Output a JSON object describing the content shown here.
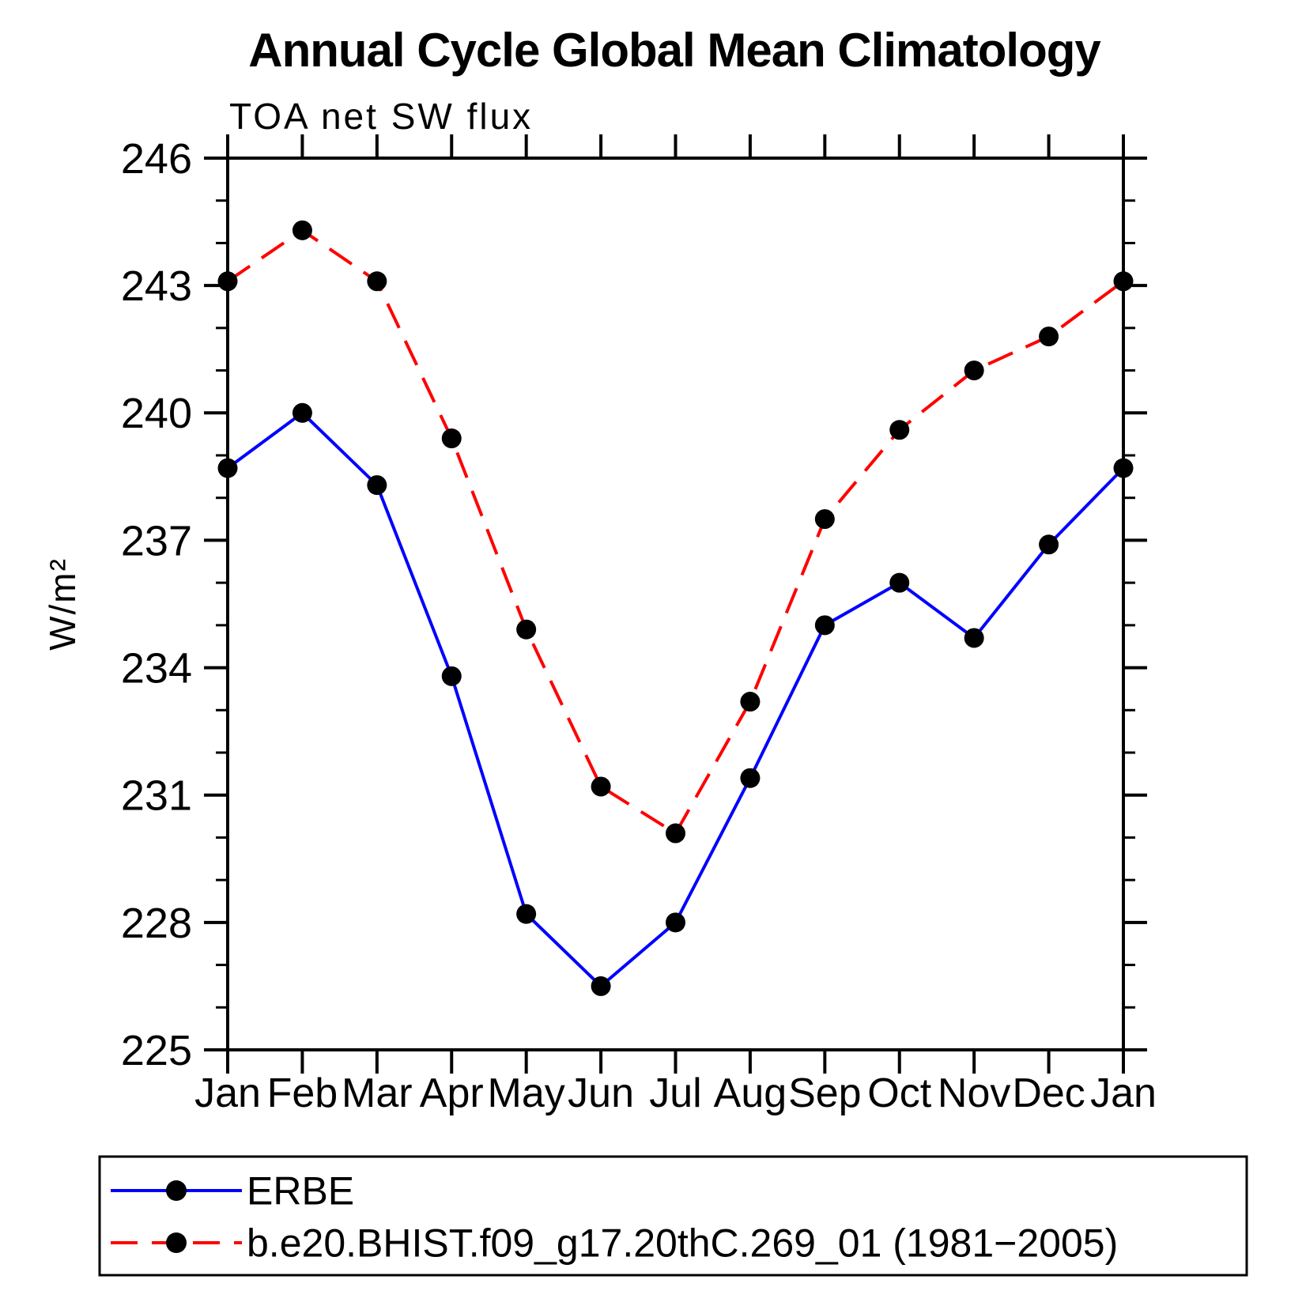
{
  "page": {
    "background_color": "#ffffff",
    "axis_color": "#000000",
    "text_color": "#000000"
  },
  "chart_data": {
    "type": "line",
    "title": "Annual Cycle Global Mean Climatology",
    "subtitle": "TOA net SW flux",
    "xlabel": "",
    "ylabel": "W/m²",
    "categories": [
      "Jan",
      "Feb",
      "Mar",
      "Apr",
      "May",
      "Jun",
      "Jul",
      "Aug",
      "Sep",
      "Oct",
      "Nov",
      "Dec",
      "Jan"
    ],
    "ylim": [
      225,
      246
    ],
    "ytick_major_step": 3,
    "ytick_minor_step": 1,
    "ytick_labels": [
      "225",
      "228",
      "231",
      "234",
      "237",
      "240",
      "243",
      "246"
    ],
    "grid": false,
    "legend_position": "bottom-box",
    "series": [
      {
        "id": "erbe",
        "name": "ERBE",
        "color": "#0000ff",
        "line_style": "solid",
        "marker": "filled-circle",
        "marker_color": "#000000",
        "values": [
          238.7,
          240.0,
          238.3,
          233.8,
          228.2,
          226.5,
          228.0,
          231.4,
          235.0,
          236.0,
          234.7,
          236.9,
          238.7
        ]
      },
      {
        "id": "model",
        "name": "b.e20.BHIST.f09_g17.20thC.269_01 (1981−2005)",
        "color": "#ff0000",
        "line_style": "dashed",
        "marker": "filled-circle",
        "marker_color": "#000000",
        "values": [
          243.1,
          244.3,
          243.1,
          239.4,
          234.9,
          231.2,
          230.1,
          233.2,
          237.5,
          239.6,
          241.0,
          241.8,
          243.1
        ]
      }
    ]
  }
}
